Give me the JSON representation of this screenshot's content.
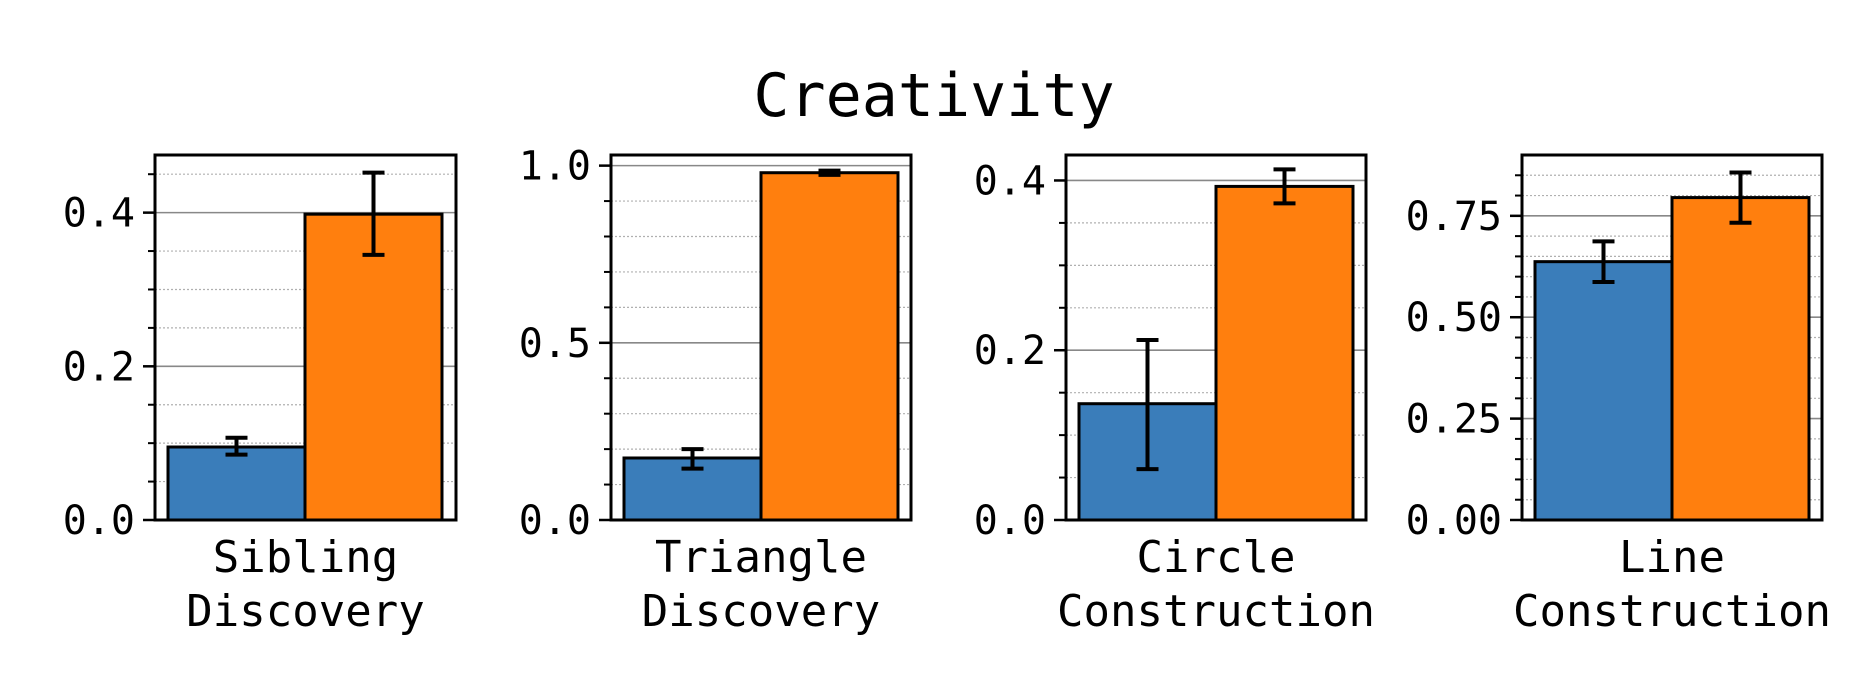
{
  "figure_title": "Creativity",
  "colors": {
    "blue": "#3a7dba",
    "orange": "#ff7f0e",
    "major_grid": "#888888",
    "minor_grid": "#b0b0b0"
  },
  "chart_data": [
    {
      "type": "bar",
      "title": "Sibling Discovery",
      "xlabel": [
        "Sibling",
        "Discovery"
      ],
      "ylim": [
        0,
        0.475
      ],
      "yticks": [
        0.0,
        0.2,
        0.4
      ],
      "ytick_labels": [
        "0.0",
        "0.2",
        "0.4"
      ],
      "minor_step": 0.05,
      "series": [
        {
          "name": "blue",
          "value": 0.095,
          "err_low": 0.085,
          "err_high": 0.107
        },
        {
          "name": "orange",
          "value": 0.398,
          "err_low": 0.345,
          "err_high": 0.452
        }
      ]
    },
    {
      "type": "bar",
      "title": "Triangle Discovery",
      "xlabel": [
        "Triangle",
        "Discovery"
      ],
      "ylim": [
        0,
        1.03
      ],
      "yticks": [
        0.0,
        0.5,
        1.0
      ],
      "ytick_labels": [
        "0.0",
        "0.5",
        "1.0"
      ],
      "minor_step": 0.1,
      "series": [
        {
          "name": "blue",
          "value": 0.175,
          "err_low": 0.145,
          "err_high": 0.2
        },
        {
          "name": "orange",
          "value": 0.98,
          "err_low": 0.974,
          "err_high": 0.986
        }
      ]
    },
    {
      "type": "bar",
      "title": "Circle Construction",
      "xlabel": [
        "Circle",
        "Construction"
      ],
      "ylim": [
        0,
        0.43
      ],
      "yticks": [
        0.0,
        0.2,
        0.4
      ],
      "ytick_labels": [
        "0.0",
        "0.2",
        "0.4"
      ],
      "minor_step": 0.05,
      "series": [
        {
          "name": "blue",
          "value": 0.137,
          "err_low": 0.06,
          "err_high": 0.212
        },
        {
          "name": "orange",
          "value": 0.393,
          "err_low": 0.373,
          "err_high": 0.413
        }
      ]
    },
    {
      "type": "bar",
      "title": "Line Construction",
      "xlabel": [
        "Line",
        "Construction"
      ],
      "ylim": [
        0,
        0.9
      ],
      "yticks": [
        0.0,
        0.25,
        0.5,
        0.75
      ],
      "ytick_labels": [
        "0.00",
        "0.25",
        "0.50",
        "0.75"
      ],
      "minor_step": 0.05,
      "series": [
        {
          "name": "blue",
          "value": 0.637,
          "err_low": 0.587,
          "err_high": 0.687
        },
        {
          "name": "orange",
          "value": 0.795,
          "err_low": 0.733,
          "err_high": 0.857
        }
      ]
    }
  ]
}
